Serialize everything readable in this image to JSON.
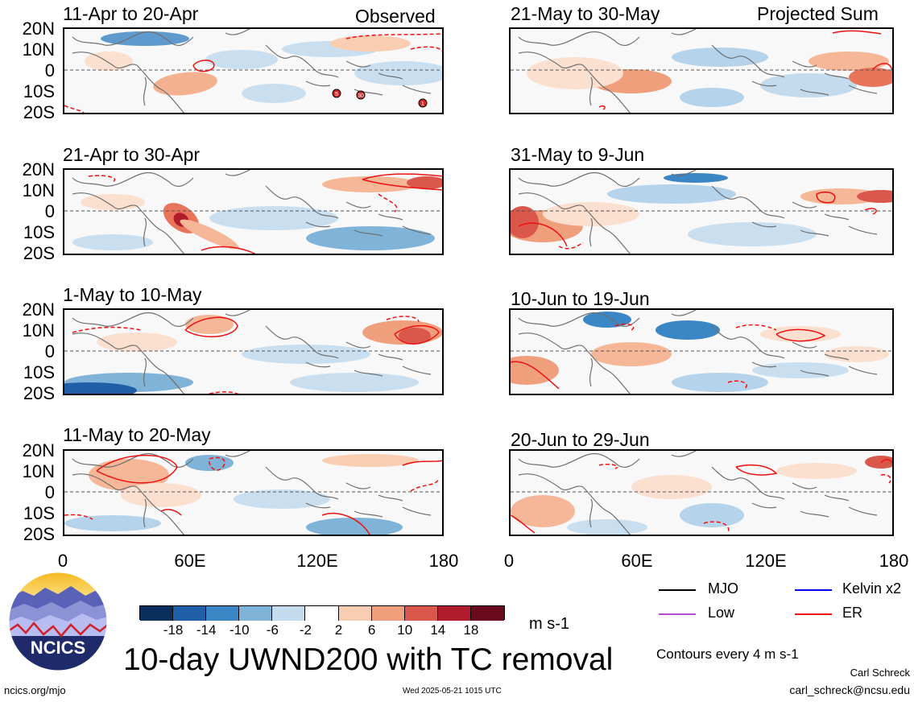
{
  "panels": [
    {
      "title": "11-Apr to 20-Apr",
      "tag": "Observed"
    },
    {
      "title": "21-May to 30-May",
      "tag": "Projected Sum"
    },
    {
      "title": "21-Apr to 30-Apr",
      "tag": ""
    },
    {
      "title": "31-May to 9-Jun",
      "tag": ""
    },
    {
      "title": "1-May to 10-May",
      "tag": ""
    },
    {
      "title": "10-Jun to 19-Jun",
      "tag": ""
    },
    {
      "title": "11-May to 20-May",
      "tag": ""
    },
    {
      "title": "20-Jun to 29-Jun",
      "tag": ""
    }
  ],
  "y_ticks": [
    "20N",
    "10N",
    "0",
    "10S",
    "20S"
  ],
  "x_ticks": [
    "0",
    "60E",
    "120E",
    "180"
  ],
  "colorbar": {
    "labels": [
      "-18",
      "-14",
      "-10",
      "-6",
      "-2",
      "2",
      "6",
      "10",
      "14",
      "18"
    ],
    "colors": [
      "#0b2f5c",
      "#1f5fa8",
      "#3b86c4",
      "#7fb3d8",
      "#c3dbec",
      "#ffffff",
      "#f9cdb2",
      "#f09f7d",
      "#d9584b",
      "#b01c2b",
      "#6b0a1c"
    ],
    "units": "m s-1"
  },
  "legend": [
    {
      "label": "MJO",
      "color": "#000000"
    },
    {
      "label": "Kelvin x2",
      "color": "#0000ee"
    },
    {
      "label": "Low",
      "color": "#b04cd8"
    },
    {
      "label": "ER",
      "color": "#ee1111"
    }
  ],
  "contour_note": "Contours every 4 m s-1",
  "main_title": "10-day UWND200 with TC removal",
  "logo_text": "NCICS",
  "author": "Carl Schreck",
  "email": "carl_schreck@ncsu.edu",
  "url": "ncics.org/mjo",
  "timestamp": "Wed 2025-05-21 1015 UTC",
  "tc_marks": [
    "5",
    "30",
    "1"
  ]
}
